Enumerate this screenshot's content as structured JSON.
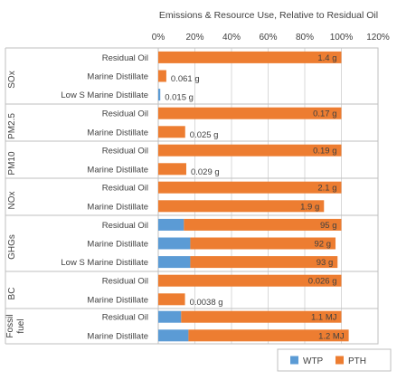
{
  "chart_data": {
    "type": "bar",
    "orientation": "horizontal",
    "stacked": true,
    "title": "Emissions & Resource Use, Relative to Residual Oil",
    "x_ticks": [
      "0%",
      "20%",
      "40%",
      "60%",
      "80%",
      "100%",
      "120%"
    ],
    "xlim": [
      0,
      120
    ],
    "x_axis_position": "top",
    "grid": true,
    "legend": {
      "position": "bottom-right",
      "entries": [
        "WTP",
        "PTH"
      ]
    },
    "colors": {
      "WTP": "#5B9BD5",
      "PTH": "#ED7D31"
    },
    "groups": [
      {
        "name": "SOx",
        "rows": [
          {
            "category": "Residual Oil",
            "WTP": 0,
            "PTH": 100,
            "label": "1.4 g"
          },
          {
            "category": "Marine Distillate",
            "WTP": 0,
            "PTH": 4.4,
            "label": "0.061 g"
          },
          {
            "category": "Low S Marine Distillate",
            "WTP": 1.1,
            "PTH": 0,
            "label": "0.015 g"
          }
        ]
      },
      {
        "name": "PM2.5",
        "rows": [
          {
            "category": "Residual Oil",
            "WTP": 0,
            "PTH": 100,
            "label": "0.17 g"
          },
          {
            "category": "Marine Distillate",
            "WTP": 0,
            "PTH": 14.7,
            "label": "0.025 g"
          }
        ]
      },
      {
        "name": "PM10",
        "rows": [
          {
            "category": "Residual Oil",
            "WTP": 0,
            "PTH": 100,
            "label": "0.19 g"
          },
          {
            "category": "Marine Distillate",
            "WTP": 0,
            "PTH": 15.3,
            "label": "0.029 g"
          }
        ]
      },
      {
        "name": "NOx",
        "rows": [
          {
            "category": "Residual Oil",
            "WTP": 0,
            "PTH": 100,
            "label": "2.1 g"
          },
          {
            "category": "Marine Distillate",
            "WTP": 0,
            "PTH": 90.5,
            "label": "1.9 g"
          }
        ]
      },
      {
        "name": "GHGs",
        "rows": [
          {
            "category": "Residual Oil",
            "WTP": 14,
            "PTH": 86,
            "label": "95 g"
          },
          {
            "category": "Marine Distillate",
            "WTP": 17.5,
            "PTH": 79.3,
            "label": "92 g"
          },
          {
            "category": "Low S Marine Distillate",
            "WTP": 17.5,
            "PTH": 80.4,
            "label": "93 g"
          }
        ]
      },
      {
        "name": "BC",
        "rows": [
          {
            "category": "Residual Oil",
            "WTP": 0,
            "PTH": 100,
            "label": "0.026 g"
          },
          {
            "category": "Marine Distillate",
            "WTP": 0,
            "PTH": 14.6,
            "label": "0.0038 g"
          }
        ]
      },
      {
        "name": "Fossil fuel",
        "name_lines": [
          "Fossil",
          "fuel"
        ],
        "rows": [
          {
            "category": "Residual Oil",
            "WTP": 12.5,
            "PTH": 87.5,
            "label": "1.1 MJ"
          },
          {
            "category": "Marine Distillate",
            "WTP": 16.5,
            "PTH": 87.5,
            "label": "1.2 MJ"
          }
        ]
      }
    ]
  }
}
